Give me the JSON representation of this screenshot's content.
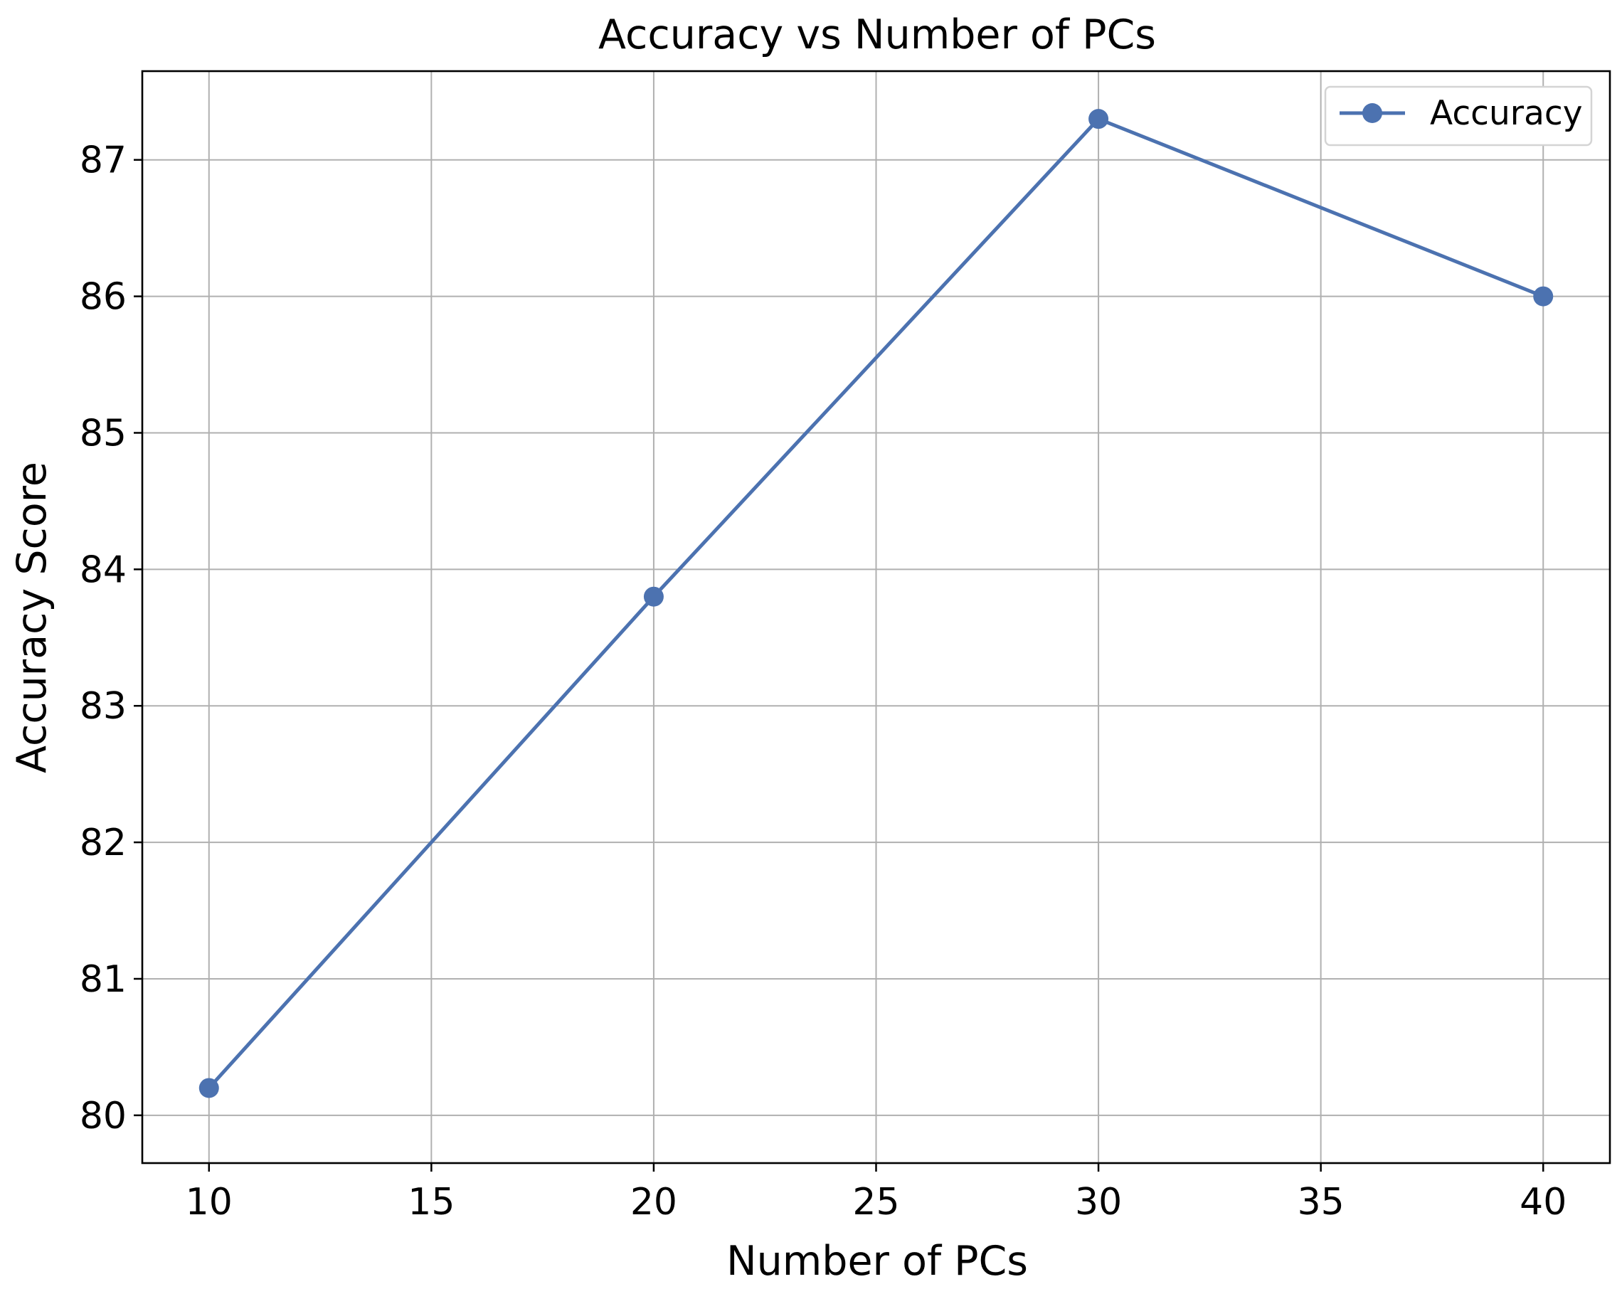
{
  "chart_data": {
    "type": "line",
    "title": "Accuracy vs Number of PCs",
    "xlabel": "Number of PCs",
    "ylabel": "Accuracy Score",
    "x": [
      10,
      20,
      30,
      40
    ],
    "series": [
      {
        "name": "Accuracy",
        "values": [
          80.2,
          83.8,
          87.3,
          86.0
        ],
        "color": "#4c72b0",
        "marker": "circle"
      }
    ],
    "xlim": [
      8.5,
      41.5
    ],
    "ylim": [
      79.65,
      87.65
    ],
    "xticks": [
      10,
      15,
      20,
      25,
      30,
      35,
      40
    ],
    "yticks": [
      80,
      81,
      82,
      83,
      84,
      85,
      86,
      87
    ],
    "grid": true,
    "legend_position": "top-right"
  }
}
